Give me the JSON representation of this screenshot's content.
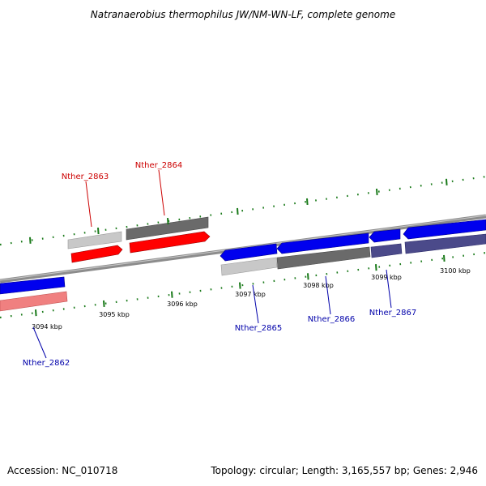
{
  "title": "Natranaerobius thermophilus JW/NM-WN-LF, complete genome",
  "footer": {
    "accession": "Accession: NC_010718",
    "summary": "Topology: circular; Length: 3,165,557 bp; Genes: 2,946"
  },
  "colors": {
    "backbone": "#8c8c8c",
    "forward_cds": "#ff0000",
    "reverse_cds": "#0000ff",
    "forward_label": "#cc0000",
    "reverse_label": "#0000aa",
    "tick": "#1a7a1a"
  },
  "scale": {
    "unit": "kbp",
    "ticks": [
      {
        "label": "3094 kbp"
      },
      {
        "label": "3095 kbp"
      },
      {
        "label": "3096 kbp"
      },
      {
        "label": "3097 kbp"
      },
      {
        "label": "3098 kbp"
      },
      {
        "label": "3099 kbp"
      },
      {
        "label": "3100 kbp"
      }
    ]
  },
  "genes": {
    "forward": [
      {
        "name": "Nther_2863"
      },
      {
        "name": "Nther_2864"
      }
    ],
    "reverse": [
      {
        "name": "Nther_2862"
      },
      {
        "name": "Nther_2865"
      },
      {
        "name": "Nther_2866"
      },
      {
        "name": "Nther_2867"
      }
    ]
  }
}
